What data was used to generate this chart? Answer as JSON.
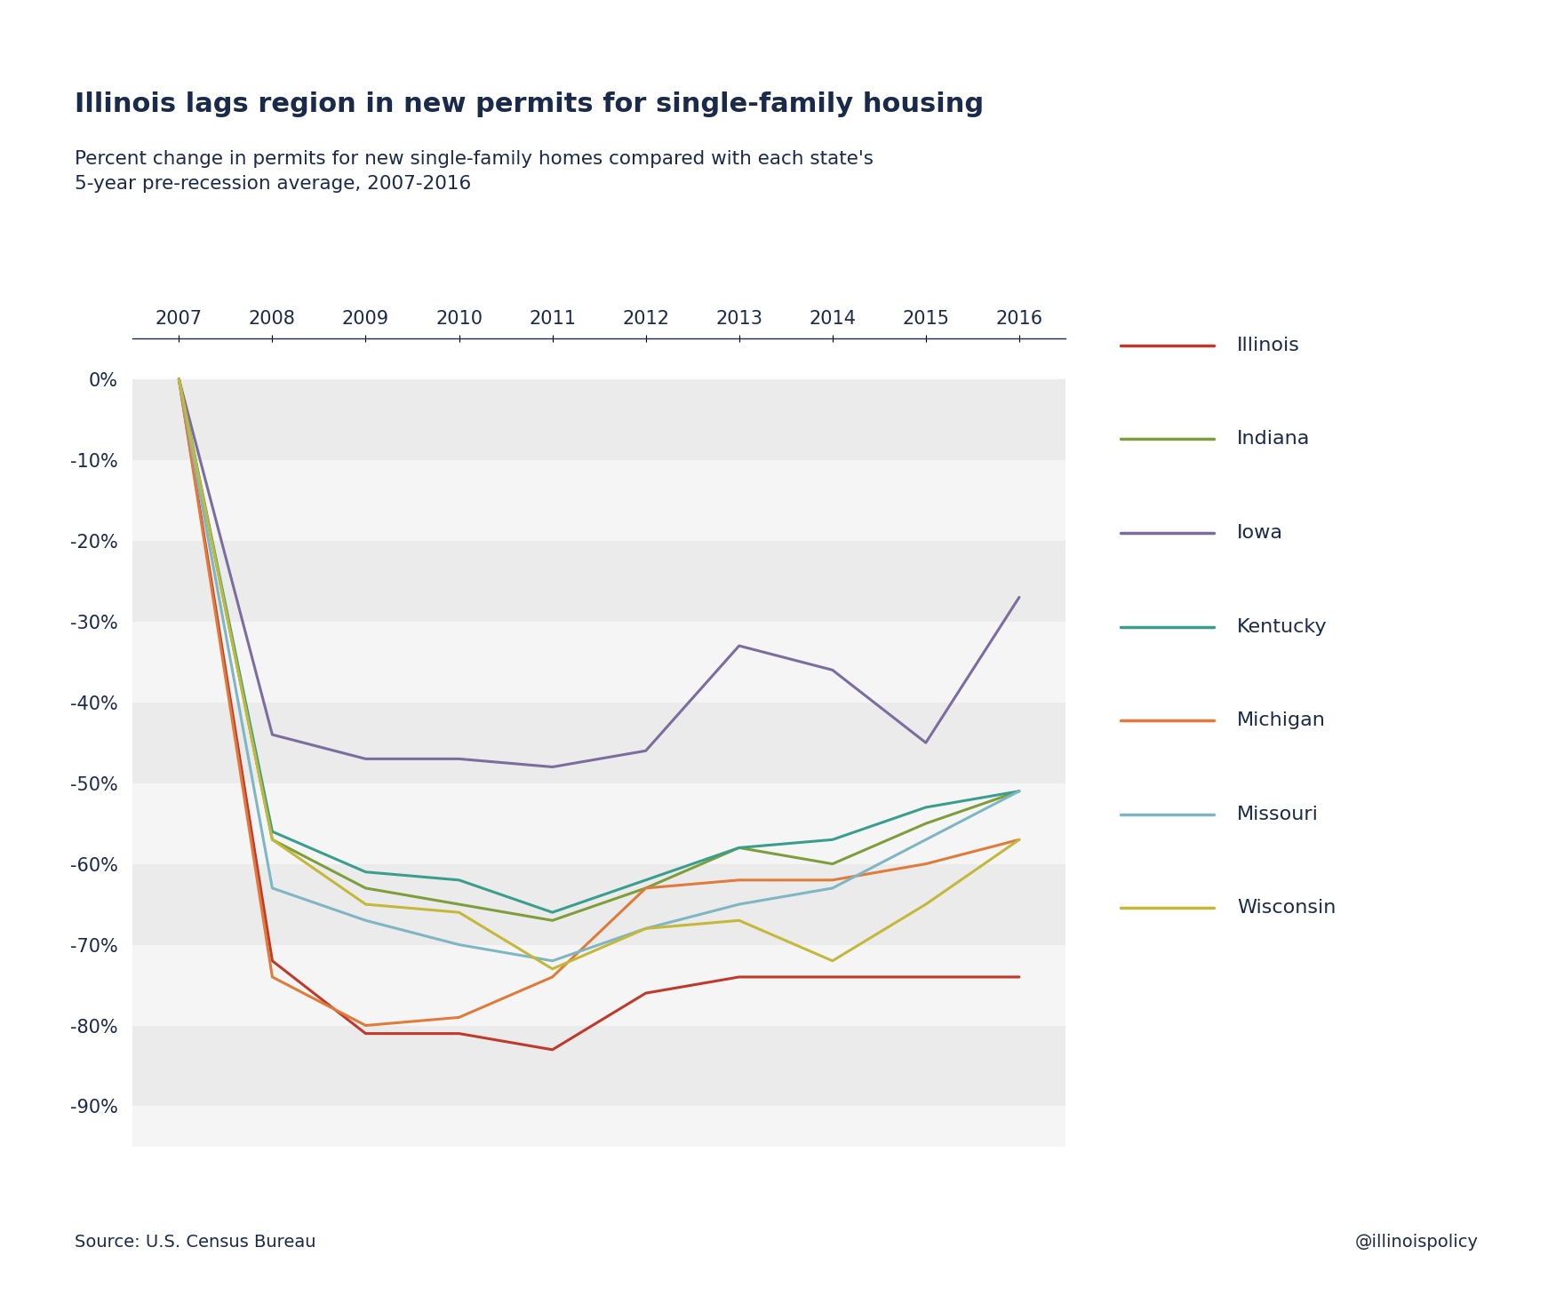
{
  "title": "Illinois lags region in new permits for single-family housing",
  "subtitle": "Percent change in permits for new single-family homes compared with each state's\n5-year pre-recession average, 2007-2016",
  "source": "Source: U.S. Census Bureau",
  "watermark": "@illinoispolicy",
  "years": [
    2007,
    2008,
    2009,
    2010,
    2011,
    2012,
    2013,
    2014,
    2015,
    2016
  ],
  "series": {
    "Illinois": [
      0,
      -72,
      -81,
      -81,
      -83,
      -76,
      -74,
      -74,
      -74,
      -74
    ],
    "Indiana": [
      0,
      -57,
      -63,
      -65,
      -67,
      -63,
      -58,
      -60,
      -55,
      -51
    ],
    "Iowa": [
      0,
      -44,
      -47,
      -47,
      -48,
      -46,
      -33,
      -36,
      -45,
      -27
    ],
    "Kentucky": [
      0,
      -56,
      -61,
      -62,
      -66,
      -62,
      -58,
      -57,
      -53,
      -51
    ],
    "Michigan": [
      0,
      -74,
      -80,
      -79,
      -74,
      -63,
      -62,
      -62,
      -60,
      -57
    ],
    "Missouri": [
      0,
      -63,
      -67,
      -70,
      -72,
      -68,
      -65,
      -63,
      -57,
      -51
    ],
    "Wisconsin": [
      0,
      -57,
      -65,
      -66,
      -73,
      -68,
      -67,
      -72,
      -65,
      -57
    ]
  },
  "colors": {
    "Illinois": "#c0392b",
    "Indiana": "#7d9e3a",
    "Iowa": "#7b6d9e",
    "Kentucky": "#3a9e8d",
    "Michigan": "#e07b3a",
    "Missouri": "#7eb6c4",
    "Wisconsin": "#c4b83a"
  },
  "ylim": [
    -95,
    5
  ],
  "yticks": [
    0,
    -10,
    -20,
    -30,
    -40,
    -50,
    -60,
    -70,
    -80,
    -90
  ],
  "title_color": "#1a2a4a",
  "axis_color": "#1a2a4a",
  "linewidth": 2.2
}
